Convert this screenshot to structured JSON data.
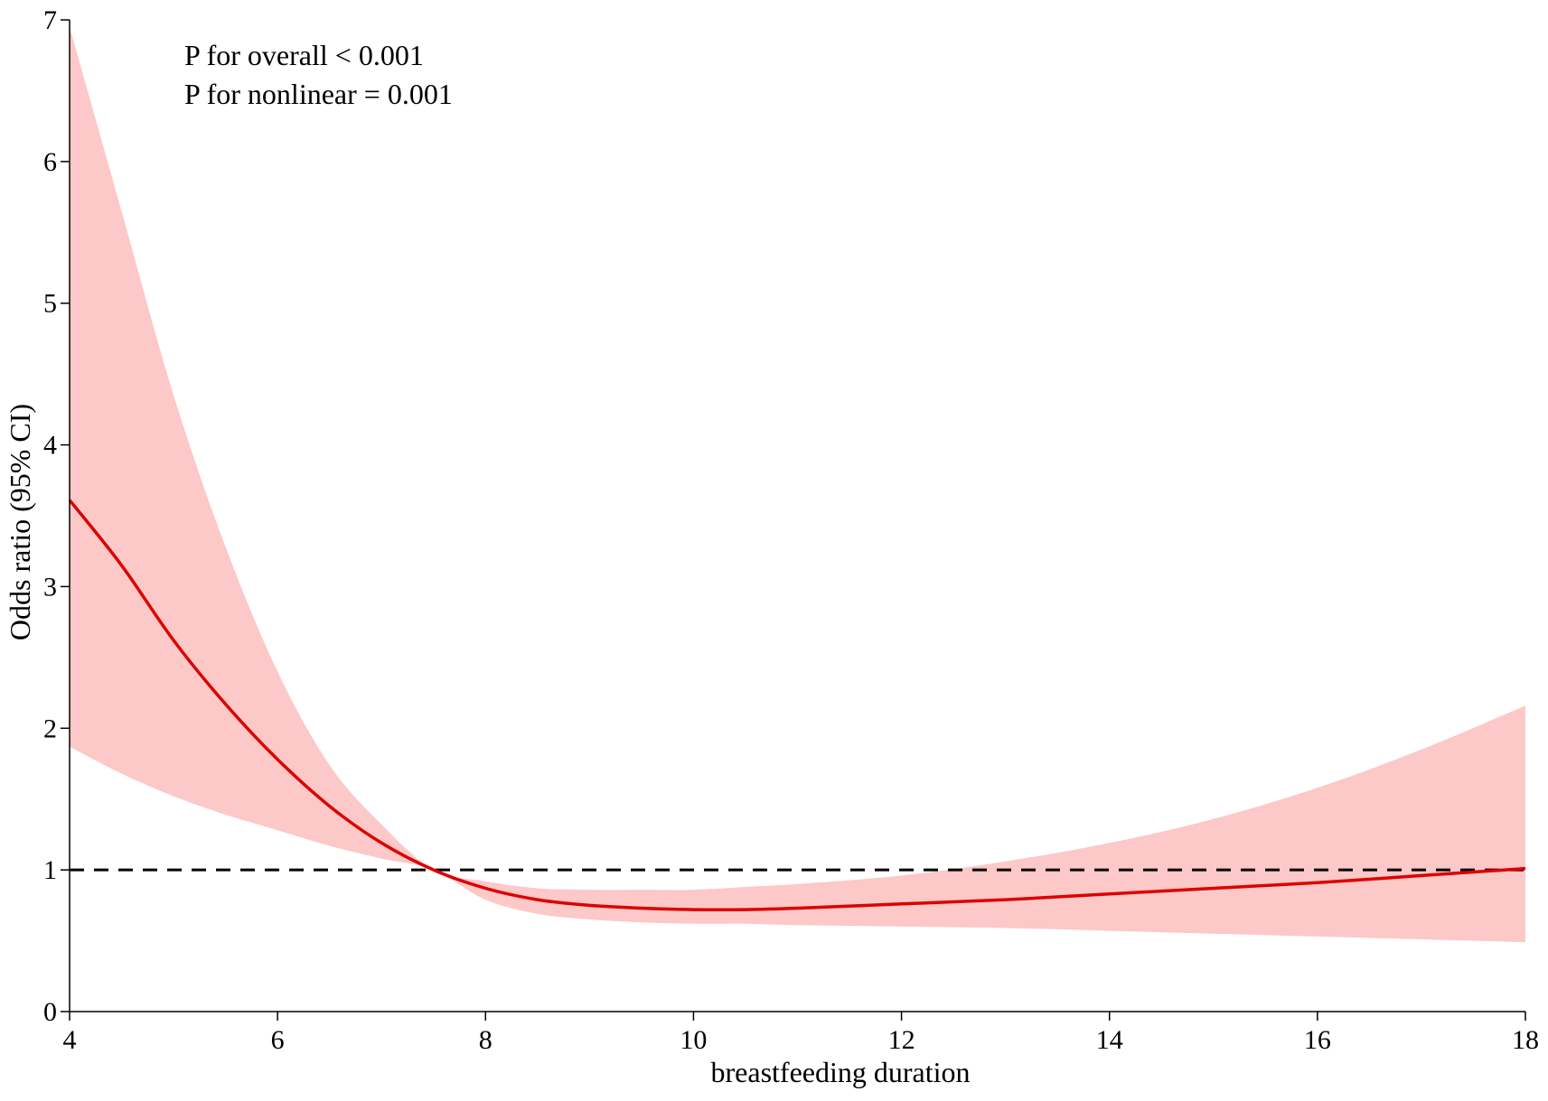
{
  "chart_data": {
    "type": "line",
    "title": "",
    "xlabel": "breastfeeding duration",
    "ylabel": "Odds ratio (95% CI)",
    "xlim": [
      4,
      18
    ],
    "ylim": [
      0,
      7
    ],
    "xticks": [
      "4",
      "6",
      "8",
      "10",
      "12",
      "14",
      "16",
      "18"
    ],
    "yticks": [
      "0",
      "1",
      "2",
      "3",
      "4",
      "5",
      "6",
      "7"
    ],
    "grid": false,
    "annotations": [
      "P for overall < 0.001",
      "P for nonlinear = 0.001"
    ],
    "reference_line": {
      "y": 1,
      "style": "dashed",
      "color": "#000000"
    },
    "line_color": "#dd0000",
    "band_color": "#fcc8c8",
    "series": [
      {
        "x": [
          4,
          4.5,
          5,
          5.5,
          6,
          6.5,
          7,
          7.5,
          8,
          8.5,
          9,
          9.5,
          10,
          10.5,
          11,
          12,
          13,
          14,
          15,
          16,
          17,
          18
        ],
        "y": [
          3.61,
          3.15,
          2.62,
          2.17,
          1.78,
          1.45,
          1.19,
          1.0,
          0.87,
          0.79,
          0.75,
          0.73,
          0.72,
          0.72,
          0.73,
          0.76,
          0.79,
          0.83,
          0.87,
          0.91,
          0.96,
          1.01
        ],
        "lower": [
          1.87,
          1.68,
          1.52,
          1.39,
          1.28,
          1.17,
          1.08,
          1.0,
          0.79,
          0.69,
          0.65,
          0.63,
          0.62,
          0.62,
          0.61,
          0.6,
          0.59,
          0.57,
          0.55,
          0.53,
          0.51,
          0.49
        ],
        "upper": [
          6.95,
          5.65,
          4.35,
          3.28,
          2.4,
          1.74,
          1.32,
          1.0,
          0.92,
          0.87,
          0.86,
          0.86,
          0.86,
          0.88,
          0.9,
          0.96,
          1.06,
          1.19,
          1.36,
          1.58,
          1.85,
          2.16
        ]
      }
    ]
  }
}
